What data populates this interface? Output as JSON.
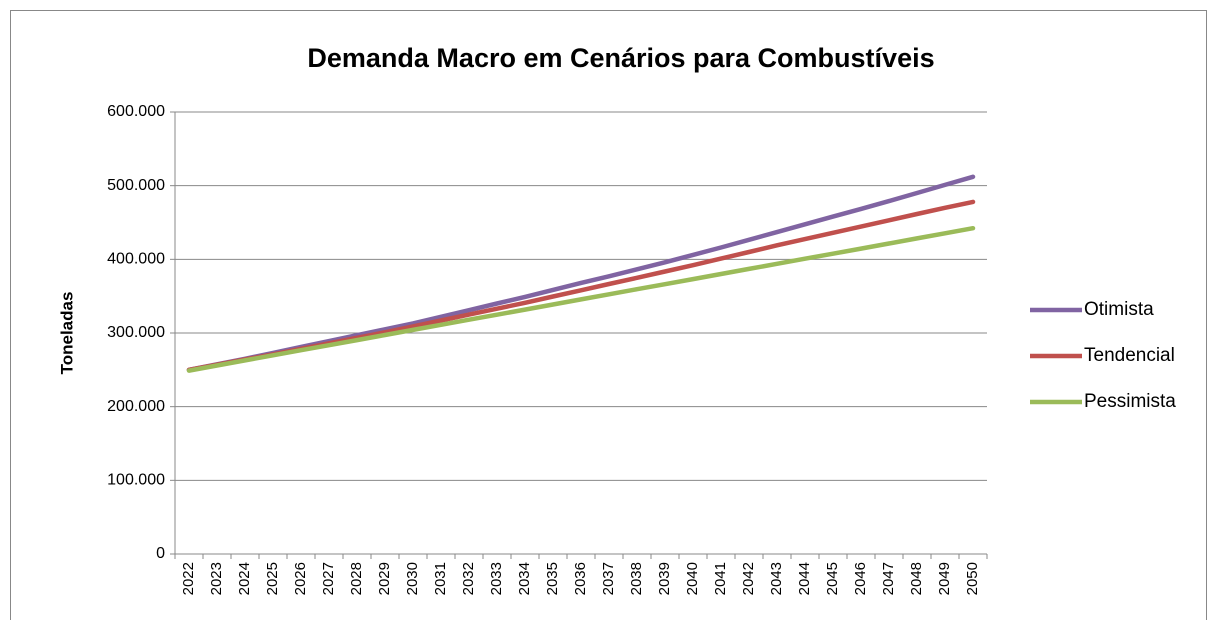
{
  "chart_data": {
    "type": "line",
    "title": "Demanda Macro em Cenários para Combustíveis",
    "y_label": "Toneladas",
    "categories": [
      "2022",
      "2023",
      "2024",
      "2025",
      "2026",
      "2027",
      "2028",
      "2029",
      "2030",
      "2031",
      "2032",
      "2033",
      "2034",
      "2035",
      "2036",
      "2037",
      "2038",
      "2039",
      "2040",
      "2041",
      "2042",
      "2043",
      "2044",
      "2045",
      "2046",
      "2047",
      "2048",
      "2049",
      "2050"
    ],
    "series": [
      {
        "name": "Otimista",
        "color": "#8064a2",
        "values": [
          250000,
          257500,
          265000,
          273000,
          281000,
          289000,
          297000,
          305000,
          313000,
          322000,
          331000,
          340000,
          349000,
          358500,
          368000,
          377000,
          386500,
          396000,
          406000,
          416000,
          426500,
          437000,
          447500,
          458000,
          468500,
          479000,
          490000,
          501000,
          512000
        ]
      },
      {
        "name": "Tendencial",
        "color": "#c0504d",
        "values": [
          250000,
          257000,
          264000,
          271000,
          278500,
          286000,
          293500,
          301000,
          309000,
          317000,
          325000,
          333000,
          341000,
          349500,
          358000,
          366500,
          375000,
          383500,
          392000,
          401000,
          410000,
          419000,
          427500,
          436000,
          444500,
          453000,
          461500,
          470000,
          478000
        ]
      },
      {
        "name": "Pessimista",
        "color": "#9bbb59",
        "values": [
          249000,
          255900,
          262800,
          269700,
          276600,
          283500,
          290400,
          297300,
          304200,
          311100,
          318000,
          324900,
          331800,
          338700,
          345600,
          352500,
          359400,
          366300,
          373200,
          380100,
          387000,
          393900,
          400800,
          407700,
          414600,
          421500,
          428400,
          435300,
          442200
        ]
      }
    ],
    "ylim": [
      0,
      600000
    ],
    "yticks": [
      0,
      {
        "value": 100000,
        "label": "100.000"
      },
      {
        "value": 200000,
        "label": "200.000"
      },
      {
        "value": 300000,
        "label": "300.000"
      },
      {
        "value": 400000,
        "label": "400.000"
      },
      {
        "value": 500000,
        "label": "500.000"
      },
      {
        "value": 600000,
        "label": "600.000"
      }
    ],
    "grid": true,
    "legend": "right"
  }
}
